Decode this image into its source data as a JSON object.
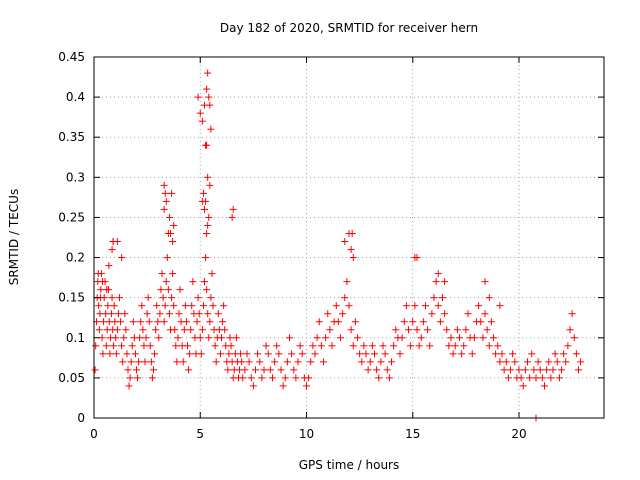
{
  "chart_data": {
    "type": "scatter",
    "title": "Day 182 of 2020, SRMTID for receiver hern",
    "xlabel": "GPS time / hours",
    "ylabel": "SRMTID / TECUs",
    "xlim": [
      0,
      24
    ],
    "ylim": [
      0,
      0.45
    ],
    "x_ticks": [
      0,
      5,
      10,
      15,
      20
    ],
    "x_tick_labels": [
      "0",
      "5",
      "10",
      "15",
      "20"
    ],
    "y_ticks": [
      0,
      0.05,
      0.1,
      0.15,
      0.2,
      0.25,
      0.3,
      0.35,
      0.4,
      0.45
    ],
    "y_tick_labels": [
      "0",
      "0.05",
      "0.1",
      "0.15",
      "0.2",
      "0.25",
      "0.3",
      "0.35",
      "0.4",
      "0.45"
    ],
    "grid": true,
    "marker": "+",
    "series_color": "#ff0000",
    "grid_color": "#a0a0a0",
    "series": [
      {
        "name": "SRMTID",
        "x": [
          0.05,
          0.08,
          0.12,
          0.15,
          0.18,
          0.22,
          0.25,
          0.28,
          0.32,
          0.35,
          0.38,
          0.42,
          0.45,
          0.48,
          0.52,
          0.55,
          0.58,
          0.62,
          0.65,
          0.68,
          0.72,
          0.75,
          0.78,
          0.82,
          0.85,
          0.88,
          0.92,
          0.95,
          0.98,
          1.02,
          1.05,
          1.1,
          1.15,
          1.2,
          1.25,
          1.3,
          1.35,
          1.4,
          1.45,
          1.5,
          1.55,
          1.6,
          1.65,
          1.7,
          1.75,
          1.8,
          1.85,
          1.9,
          1.95,
          2.0,
          2.05,
          2.1,
          2.15,
          2.2,
          2.25,
          2.3,
          2.35,
          2.4,
          2.45,
          2.5,
          2.55,
          2.6,
          2.65,
          2.7,
          2.75,
          2.8,
          2.85,
          2.9,
          2.95,
          3.0,
          3.05,
          3.1,
          3.15,
          3.2,
          3.25,
          3.3,
          3.35,
          3.4,
          3.45,
          3.5,
          3.55,
          3.6,
          3.65,
          3.7,
          3.75,
          3.8,
          3.85,
          3.9,
          3.95,
          4.0,
          4.05,
          4.1,
          4.15,
          4.2,
          4.25,
          4.3,
          4.35,
          4.4,
          4.45,
          4.5,
          4.55,
          4.6,
          4.65,
          4.7,
          4.75,
          4.8,
          4.85,
          4.9,
          4.95,
          5.0,
          5.05,
          5.1,
          5.15,
          5.2,
          5.25,
          5.3,
          5.35,
          5.4,
          5.45,
          5.5,
          5.55,
          5.6,
          5.65,
          5.7,
          5.75,
          5.8,
          5.85,
          5.9,
          5.95,
          6.0,
          6.05,
          6.1,
          6.15,
          6.2,
          6.25,
          6.3,
          6.35,
          6.4,
          6.45,
          6.5,
          6.55,
          6.6,
          6.65,
          6.7,
          6.75,
          6.8,
          6.85,
          6.9,
          6.95,
          7.0,
          7.1,
          7.2,
          7.3,
          7.4,
          7.5,
          7.6,
          7.7,
          7.8,
          7.9,
          8.0,
          8.1,
          8.2,
          8.3,
          8.4,
          8.5,
          8.6,
          8.7,
          8.8,
          8.9,
          9.0,
          9.1,
          9.2,
          9.3,
          9.4,
          9.5,
          9.6,
          9.7,
          9.8,
          9.9,
          10.0,
          10.1,
          10.2,
          10.3,
          10.4,
          10.5,
          10.6,
          10.7,
          10.8,
          10.9,
          11.0,
          11.1,
          11.2,
          11.3,
          11.4,
          11.5,
          11.6,
          11.7,
          11.8,
          11.9,
          12.0,
          12.1,
          12.2,
          12.3,
          12.4,
          12.5,
          12.6,
          12.7,
          12.8,
          12.9,
          13.0,
          13.1,
          13.2,
          13.3,
          13.4,
          13.5,
          13.6,
          13.7,
          13.8,
          13.9,
          14.0,
          14.1,
          14.2,
          14.3,
          14.4,
          14.5,
          14.6,
          14.7,
          14.8,
          14.9,
          15.0,
          15.1,
          15.2,
          15.3,
          15.4,
          15.5,
          15.6,
          15.7,
          15.8,
          15.9,
          16.0,
          16.1,
          16.2,
          16.3,
          16.4,
          16.5,
          16.6,
          16.7,
          16.8,
          16.9,
          17.0,
          17.1,
          17.2,
          17.3,
          17.4,
          17.5,
          17.6,
          17.7,
          17.8,
          17.9,
          18.0,
          18.1,
          18.2,
          18.3,
          18.4,
          18.5,
          18.6,
          18.7,
          18.8,
          18.9,
          19.0,
          19.1,
          19.2,
          19.3,
          19.4,
          19.5,
          19.6,
          19.7,
          19.8,
          19.9,
          20.0,
          20.1,
          20.2,
          20.3,
          20.4,
          20.5,
          20.6,
          20.7,
          20.8,
          20.9,
          21.0,
          21.1,
          21.2,
          21.3,
          21.4,
          21.5,
          21.6,
          21.7,
          21.8,
          21.9,
          22.0,
          22.1,
          22.2,
          22.3,
          22.4,
          22.5,
          22.6,
          22.7,
          22.8,
          22.9,
          0.2,
          0.4,
          0.6,
          0.9,
          1.1,
          1.3,
          0.3,
          0.7,
          0.85,
          0.9,
          3.3,
          3.35,
          3.4,
          3.5,
          3.6,
          3.7,
          3.3,
          3.55,
          3.65,
          3.75,
          4.9,
          5.0,
          5.1,
          5.2,
          5.3,
          5.35,
          5.4,
          5.45,
          5.5,
          5.3,
          5.25,
          5.35,
          5.45,
          5.2,
          5.1,
          5.4,
          5.35,
          5.25,
          5.3,
          5.15,
          6.5,
          6.55,
          11.8,
          12.0,
          12.1,
          12.15,
          12.2,
          15.1,
          15.2,
          16.2,
          16.5,
          18.4,
          18.6,
          19.1,
          20.8
        ],
        "y": [
          0.06,
          0.09,
          0.12,
          0.15,
          0.17,
          0.14,
          0.11,
          0.13,
          0.16,
          0.18,
          0.1,
          0.08,
          0.12,
          0.15,
          0.17,
          0.13,
          0.09,
          0.11,
          0.14,
          0.16,
          0.12,
          0.08,
          0.1,
          0.13,
          0.15,
          0.11,
          0.09,
          0.14,
          0.12,
          0.1,
          0.08,
          0.11,
          0.13,
          0.15,
          0.12,
          0.09,
          0.07,
          0.1,
          0.13,
          0.11,
          0.08,
          0.06,
          0.04,
          0.05,
          0.07,
          0.09,
          0.12,
          0.1,
          0.08,
          0.06,
          0.05,
          0.07,
          0.1,
          0.12,
          0.14,
          0.11,
          0.09,
          0.07,
          0.1,
          0.13,
          0.15,
          0.12,
          0.09,
          0.07,
          0.05,
          0.06,
          0.08,
          0.11,
          0.14,
          0.12,
          0.1,
          0.13,
          0.16,
          0.18,
          0.15,
          0.12,
          0.14,
          0.17,
          0.2,
          0.16,
          0.13,
          0.11,
          0.15,
          0.18,
          0.14,
          0.11,
          0.09,
          0.07,
          0.1,
          0.13,
          0.16,
          0.12,
          0.09,
          0.07,
          0.11,
          0.14,
          0.12,
          0.09,
          0.06,
          0.08,
          0.11,
          0.14,
          0.17,
          0.13,
          0.1,
          0.08,
          0.12,
          0.15,
          0.13,
          0.1,
          0.08,
          0.11,
          0.14,
          0.17,
          0.2,
          0.16,
          0.13,
          0.1,
          0.12,
          0.15,
          0.18,
          0.14,
          0.11,
          0.09,
          0.07,
          0.1,
          0.13,
          0.11,
          0.08,
          0.1,
          0.12,
          0.14,
          0.11,
          0.09,
          0.07,
          0.06,
          0.08,
          0.1,
          0.09,
          0.07,
          0.05,
          0.06,
          0.08,
          0.1,
          0.07,
          0.05,
          0.06,
          0.08,
          0.07,
          0.05,
          0.06,
          0.08,
          0.07,
          0.05,
          0.04,
          0.06,
          0.08,
          0.07,
          0.05,
          0.06,
          0.09,
          0.08,
          0.06,
          0.05,
          0.07,
          0.09,
          0.08,
          0.06,
          0.04,
          0.05,
          0.07,
          0.1,
          0.08,
          0.06,
          0.05,
          0.07,
          0.09,
          0.08,
          0.05,
          0.04,
          0.05,
          0.07,
          0.09,
          0.08,
          0.1,
          0.12,
          0.09,
          0.07,
          0.1,
          0.13,
          0.11,
          0.09,
          0.12,
          0.14,
          0.12,
          0.1,
          0.13,
          0.15,
          0.17,
          0.14,
          0.11,
          0.09,
          0.12,
          0.1,
          0.08,
          0.07,
          0.09,
          0.08,
          0.06,
          0.07,
          0.09,
          0.08,
          0.06,
          0.05,
          0.07,
          0.09,
          0.08,
          0.06,
          0.05,
          0.07,
          0.09,
          0.11,
          0.1,
          0.08,
          0.1,
          0.12,
          0.14,
          0.11,
          0.09,
          0.12,
          0.14,
          0.11,
          0.09,
          0.1,
          0.12,
          0.14,
          0.11,
          0.09,
          0.13,
          0.15,
          0.17,
          0.14,
          0.12,
          0.15,
          0.13,
          0.11,
          0.09,
          0.1,
          0.08,
          0.09,
          0.11,
          0.1,
          0.08,
          0.09,
          0.11,
          0.13,
          0.1,
          0.08,
          0.1,
          0.12,
          0.14,
          0.12,
          0.1,
          0.13,
          0.11,
          0.09,
          0.12,
          0.1,
          0.08,
          0.09,
          0.07,
          0.08,
          0.06,
          0.07,
          0.05,
          0.06,
          0.08,
          0.07,
          0.05,
          0.06,
          0.05,
          0.04,
          0.06,
          0.07,
          0.05,
          0.08,
          0.06,
          0.05,
          0.07,
          0.06,
          0.05,
          0.04,
          0.06,
          0.07,
          0.05,
          0.06,
          0.08,
          0.07,
          0.05,
          0.06,
          0.08,
          0.07,
          0.09,
          0.11,
          0.13,
          0.1,
          0.08,
          0.06,
          0.07,
          0.18,
          0.17,
          0.16,
          0.22,
          0.22,
          0.2,
          0.15,
          0.19,
          0.21,
          0.22,
          0.29,
          0.28,
          0.27,
          0.23,
          0.23,
          0.22,
          0.26,
          0.25,
          0.28,
          0.24,
          0.4,
          0.38,
          0.37,
          0.39,
          0.41,
          0.43,
          0.4,
          0.39,
          0.36,
          0.34,
          0.34,
          0.3,
          0.29,
          0.26,
          0.27,
          0.25,
          0.24,
          0.27,
          0.23,
          0.28,
          0.25,
          0.26,
          0.22,
          0.23,
          0.21,
          0.23,
          0.2,
          0.2,
          0.2,
          0.18,
          0.17,
          0.17,
          0.15,
          0.14,
          0.0
        ]
      }
    ]
  }
}
